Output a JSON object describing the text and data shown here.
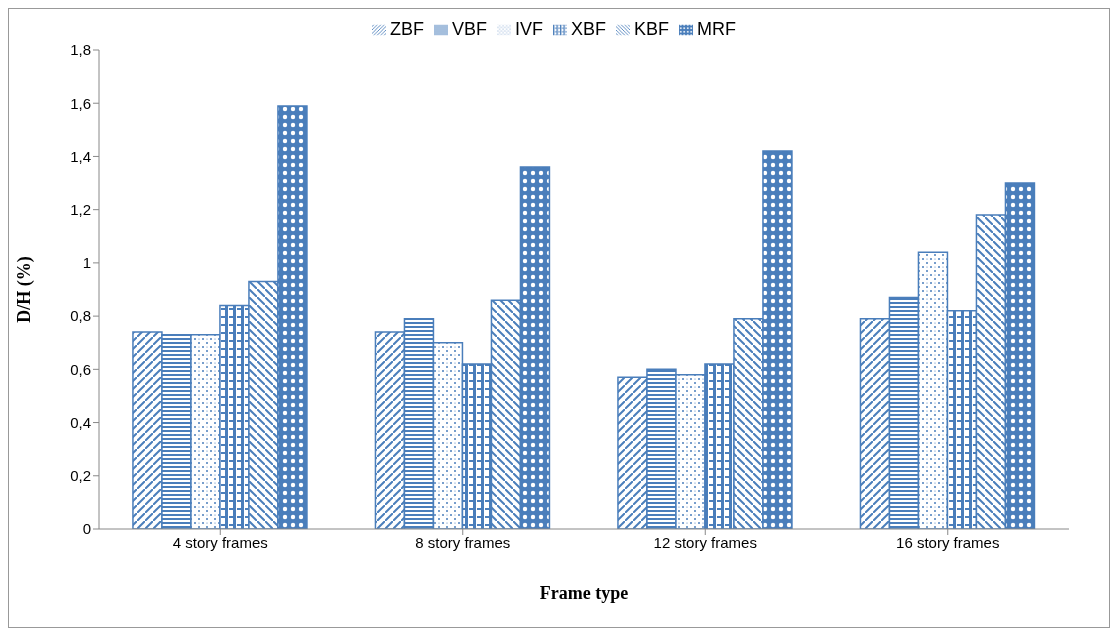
{
  "chart_data": {
    "type": "bar",
    "xlabel": "Frame type",
    "ylabel": "D/H (%)",
    "categories": [
      "4 story frames",
      "8 story frames",
      "12 story frames",
      "16 story frames"
    ],
    "series": [
      {
        "name": "ZBF",
        "color": "#4a7ebb",
        "values": [
          0.74,
          0.74,
          0.57,
          0.79
        ]
      },
      {
        "name": "VBF",
        "color": "#4a7ebb",
        "values": [
          0.73,
          0.79,
          0.6,
          0.87
        ]
      },
      {
        "name": "IVF",
        "color": "#4a7ebb",
        "values": [
          0.73,
          0.7,
          0.58,
          1.04
        ]
      },
      {
        "name": "XBF",
        "color": "#4a7ebb",
        "values": [
          0.84,
          0.62,
          0.62,
          0.82
        ]
      },
      {
        "name": "KBF",
        "color": "#4a7ebb",
        "values": [
          0.93,
          0.86,
          0.79,
          1.18
        ]
      },
      {
        "name": "MRF",
        "color": "#4a7ebb",
        "values": [
          1.59,
          1.36,
          1.42,
          1.3
        ]
      }
    ],
    "ylim": [
      0,
      1.8
    ],
    "yticks": [
      0,
      {
        "value": 0.2,
        "label": "0,2"
      },
      {
        "value": 0.4,
        "label": "0,4"
      },
      {
        "value": 0.6,
        "label": "0,6"
      },
      {
        "value": 0.8,
        "label": "0,8"
      },
      1,
      {
        "value": 1.2,
        "label": "1,2"
      },
      {
        "value": 1.4,
        "label": "1,4"
      },
      {
        "value": 1.6,
        "label": "1,6"
      },
      {
        "value": 1.8,
        "label": "1,8"
      }
    ],
    "legend": "top",
    "grid": false
  }
}
